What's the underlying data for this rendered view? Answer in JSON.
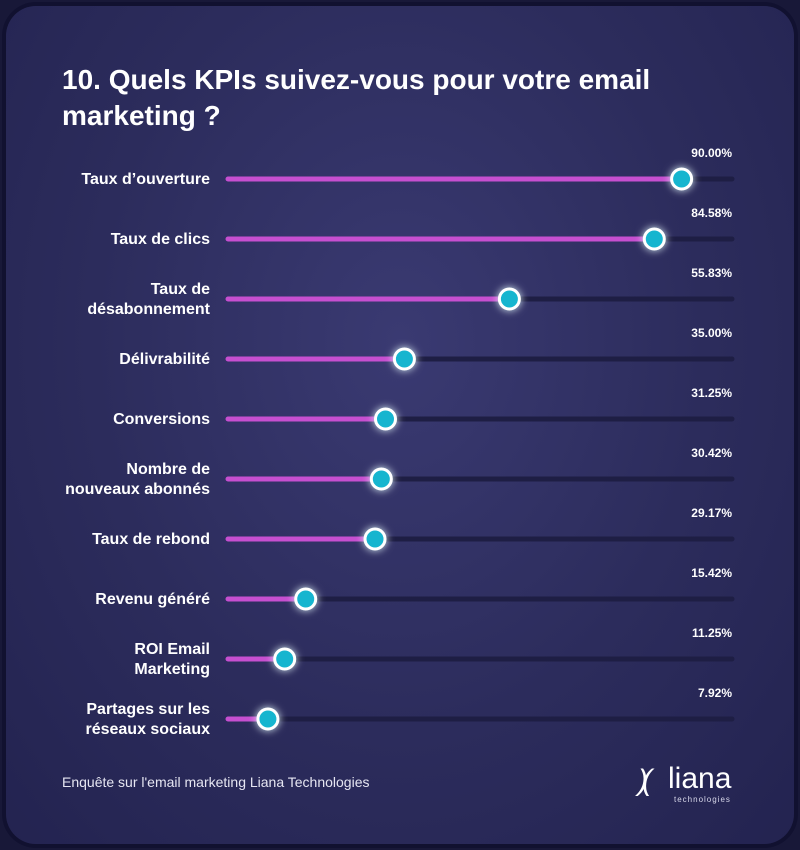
{
  "title": "10. Quels KPIs suivez-vous pour votre email marketing ?",
  "footer": "Enquête sur l'email marketing Liana Technologies",
  "logo": {
    "word": "liana",
    "sub": "technologies",
    "mark": ")("
  },
  "colors": {
    "background": "#2c2c5c",
    "track": "#1e1e44",
    "bar": "#c64fd0",
    "marker_fill": "#17b5cf",
    "marker_ring": "#ffffff",
    "text": "#ffffff"
  },
  "chart_data": {
    "type": "bar",
    "orientation": "horizontal",
    "categories": [
      "Taux d’ouverture",
      "Taux de clics",
      "Taux de désabonnement",
      "Délivrabilité",
      "Conversions",
      "Nombre de nouveaux abonnés",
      "Taux de rebond",
      "Revenu généré",
      "ROI Email Marketing",
      "Partages sur les réseaux sociaux"
    ],
    "category_lines": [
      [
        "Taux d’ouverture"
      ],
      [
        "Taux de clics"
      ],
      [
        "Taux de",
        "désabonnement"
      ],
      [
        "Délivrabilité"
      ],
      [
        "Conversions"
      ],
      [
        "Nombre de",
        "nouveaux abonnés"
      ],
      [
        "Taux de rebond"
      ],
      [
        "Revenu généré"
      ],
      [
        "ROI Email",
        "Marketing"
      ],
      [
        "Partages sur les",
        "réseaux sociaux"
      ]
    ],
    "values": [
      90.0,
      84.58,
      55.83,
      35.0,
      31.25,
      30.42,
      29.17,
      15.42,
      11.25,
      7.92
    ],
    "value_labels": [
      "90.00%",
      "84.58%",
      "55.83%",
      "35.00%",
      "31.25%",
      "30.42%",
      "29.17%",
      "15.42%",
      "11.25%",
      "7.92%"
    ],
    "xlim": [
      0,
      100
    ],
    "unit": "%",
    "grid": false,
    "legend": "none"
  }
}
